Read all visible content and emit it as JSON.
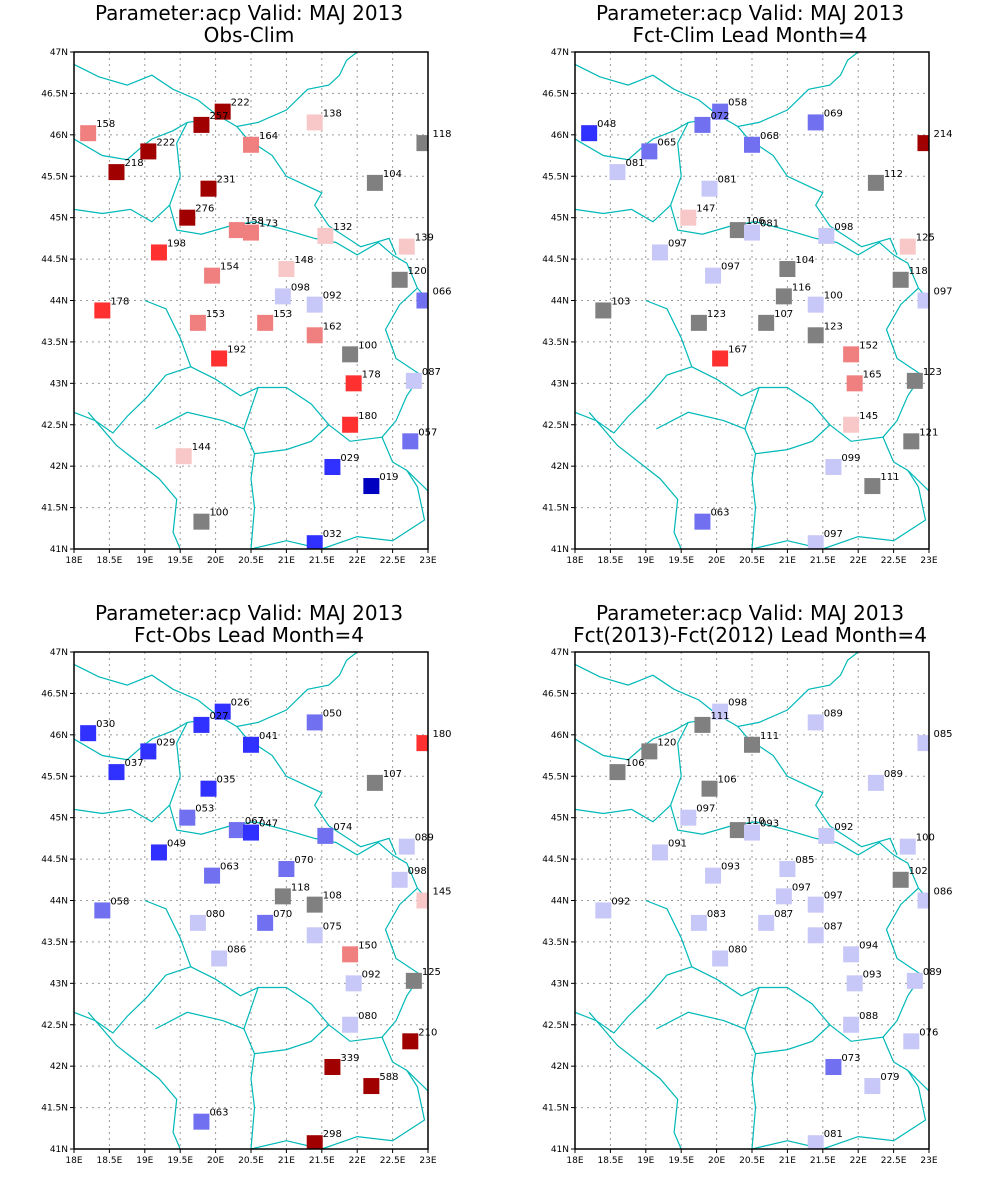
{
  "panels": [
    {
      "title": "Parameter:acp Valid: MAJ 2013",
      "subtitle": "Obs-Clim",
      "stations": [
        {
          "lon": 18.2,
          "lat": 46.02,
          "label": "158",
          "color": "#f08080"
        },
        {
          "lon": 20.1,
          "lat": 46.28,
          "label": "222",
          "color": "#a00000"
        },
        {
          "lon": 19.8,
          "lat": 46.12,
          "label": "257",
          "color": "#a00000"
        },
        {
          "lon": 19.05,
          "lat": 45.8,
          "label": "222",
          "color": "#a00000"
        },
        {
          "lon": 18.6,
          "lat": 45.55,
          "label": "218",
          "color": "#a00000"
        },
        {
          "lon": 20.5,
          "lat": 45.88,
          "label": "164",
          "color": "#f08080"
        },
        {
          "lon": 21.4,
          "lat": 46.15,
          "label": "138",
          "color": "#f8c8c8"
        },
        {
          "lon": 22.95,
          "lat": 45.9,
          "label": "118",
          "color": "#808080"
        },
        {
          "lon": 22.25,
          "lat": 45.42,
          "label": "104",
          "color": "#808080"
        },
        {
          "lon": 19.9,
          "lat": 45.35,
          "label": "231",
          "color": "#a00000"
        },
        {
          "lon": 19.6,
          "lat": 45.0,
          "label": "276",
          "color": "#a00000"
        },
        {
          "lon": 20.3,
          "lat": 44.85,
          "label": "158",
          "color": "#f08080"
        },
        {
          "lon": 20.5,
          "lat": 44.82,
          "label": "173",
          "color": "#f08080"
        },
        {
          "lon": 21.55,
          "lat": 44.78,
          "label": "132",
          "color": "#f8c8c8"
        },
        {
          "lon": 22.7,
          "lat": 44.65,
          "label": "139",
          "color": "#f8c8c8"
        },
        {
          "lon": 19.2,
          "lat": 44.58,
          "label": "198",
          "color": "#ff3030"
        },
        {
          "lon": 19.95,
          "lat": 44.3,
          "label": "154",
          "color": "#f08080"
        },
        {
          "lon": 21.0,
          "lat": 44.38,
          "label": "148",
          "color": "#f8c8c8"
        },
        {
          "lon": 22.6,
          "lat": 44.25,
          "label": "120",
          "color": "#808080"
        },
        {
          "lon": 22.95,
          "lat": 44.0,
          "label": "066",
          "color": "#7070f0"
        },
        {
          "lon": 18.4,
          "lat": 43.88,
          "label": "178",
          "color": "#ff3030"
        },
        {
          "lon": 20.95,
          "lat": 44.05,
          "label": "098",
          "color": "#c8c8f8"
        },
        {
          "lon": 21.4,
          "lat": 43.95,
          "label": "092",
          "color": "#c8c8f8"
        },
        {
          "lon": 19.75,
          "lat": 43.73,
          "label": "153",
          "color": "#f08080"
        },
        {
          "lon": 20.7,
          "lat": 43.73,
          "label": "153",
          "color": "#f08080"
        },
        {
          "lon": 21.4,
          "lat": 43.58,
          "label": "162",
          "color": "#f08080"
        },
        {
          "lon": 21.9,
          "lat": 43.35,
          "label": "100",
          "color": "#808080"
        },
        {
          "lon": 20.05,
          "lat": 43.3,
          "label": "192",
          "color": "#ff3030"
        },
        {
          "lon": 21.95,
          "lat": 43.0,
          "label": "178",
          "color": "#ff3030"
        },
        {
          "lon": 22.8,
          "lat": 43.03,
          "label": "087",
          "color": "#c8c8f8"
        },
        {
          "lon": 21.9,
          "lat": 42.5,
          "label": "180",
          "color": "#ff3030"
        },
        {
          "lon": 22.75,
          "lat": 42.3,
          "label": "057",
          "color": "#7070f0"
        },
        {
          "lon": 19.55,
          "lat": 42.12,
          "label": "144",
          "color": "#f8c8c8"
        },
        {
          "lon": 21.65,
          "lat": 41.99,
          "label": "029",
          "color": "#3030ff"
        },
        {
          "lon": 22.2,
          "lat": 41.76,
          "label": "019",
          "color": "#0000c0"
        },
        {
          "lon": 19.8,
          "lat": 41.33,
          "label": "100",
          "color": "#808080"
        },
        {
          "lon": 21.4,
          "lat": 41.07,
          "label": "032",
          "color": "#3030ff"
        }
      ]
    },
    {
      "title": "Parameter:acp Valid: MAJ 2013",
      "subtitle": "Fct-Clim Lead Month=4",
      "stations": [
        {
          "lon": 18.2,
          "lat": 46.02,
          "label": "048",
          "color": "#3030ff"
        },
        {
          "lon": 20.05,
          "lat": 46.28,
          "label": "058",
          "color": "#7070f0"
        },
        {
          "lon": 19.8,
          "lat": 46.12,
          "label": "072",
          "color": "#7070f0"
        },
        {
          "lon": 21.4,
          "lat": 46.15,
          "label": "069",
          "color": "#7070f0"
        },
        {
          "lon": 22.95,
          "lat": 45.9,
          "label": "214",
          "color": "#a00000"
        },
        {
          "lon": 19.05,
          "lat": 45.8,
          "label": "065",
          "color": "#7070f0"
        },
        {
          "lon": 20.5,
          "lat": 45.88,
          "label": "068",
          "color": "#7070f0"
        },
        {
          "lon": 18.6,
          "lat": 45.55,
          "label": "081",
          "color": "#c8c8f8"
        },
        {
          "lon": 19.9,
          "lat": 45.35,
          "label": "081",
          "color": "#c8c8f8"
        },
        {
          "lon": 22.25,
          "lat": 45.42,
          "label": "112",
          "color": "#808080"
        },
        {
          "lon": 19.6,
          "lat": 45.0,
          "label": "147",
          "color": "#f8c8c8"
        },
        {
          "lon": 20.3,
          "lat": 44.85,
          "label": "106",
          "color": "#808080"
        },
        {
          "lon": 20.5,
          "lat": 44.82,
          "label": "081",
          "color": "#c8c8f8"
        },
        {
          "lon": 21.55,
          "lat": 44.78,
          "label": "098",
          "color": "#c8c8f8"
        },
        {
          "lon": 22.7,
          "lat": 44.65,
          "label": "125",
          "color": "#f8c8c8"
        },
        {
          "lon": 19.2,
          "lat": 44.58,
          "label": "097",
          "color": "#c8c8f8"
        },
        {
          "lon": 21.0,
          "lat": 44.38,
          "label": "104",
          "color": "#808080"
        },
        {
          "lon": 19.95,
          "lat": 44.3,
          "label": "097",
          "color": "#c8c8f8"
        },
        {
          "lon": 22.6,
          "lat": 44.25,
          "label": "118",
          "color": "#808080"
        },
        {
          "lon": 22.95,
          "lat": 44.0,
          "label": "097",
          "color": "#c8c8f8"
        },
        {
          "lon": 20.95,
          "lat": 44.05,
          "label": "116",
          "color": "#808080"
        },
        {
          "lon": 21.4,
          "lat": 43.95,
          "label": "100",
          "color": "#c8c8f8"
        },
        {
          "lon": 18.4,
          "lat": 43.88,
          "label": "103",
          "color": "#808080"
        },
        {
          "lon": 19.75,
          "lat": 43.73,
          "label": "123",
          "color": "#808080"
        },
        {
          "lon": 20.7,
          "lat": 43.73,
          "label": "107",
          "color": "#808080"
        },
        {
          "lon": 21.4,
          "lat": 43.58,
          "label": "123",
          "color": "#808080"
        },
        {
          "lon": 21.9,
          "lat": 43.35,
          "label": "152",
          "color": "#f08080"
        },
        {
          "lon": 20.05,
          "lat": 43.3,
          "label": "167",
          "color": "#ff3030"
        },
        {
          "lon": 21.95,
          "lat": 43.0,
          "label": "165",
          "color": "#f08080"
        },
        {
          "lon": 22.8,
          "lat": 43.03,
          "label": "123",
          "color": "#808080"
        },
        {
          "lon": 21.9,
          "lat": 42.5,
          "label": "145",
          "color": "#f8c8c8"
        },
        {
          "lon": 22.75,
          "lat": 42.3,
          "label": "121",
          "color": "#808080"
        },
        {
          "lon": 21.65,
          "lat": 41.99,
          "label": "099",
          "color": "#c8c8f8"
        },
        {
          "lon": 22.2,
          "lat": 41.76,
          "label": "111",
          "color": "#808080"
        },
        {
          "lon": 19.8,
          "lat": 41.33,
          "label": "063",
          "color": "#7070f0"
        },
        {
          "lon": 21.4,
          "lat": 41.07,
          "label": "097",
          "color": "#c8c8f8"
        }
      ]
    },
    {
      "title": "Parameter:acp Valid: MAJ 2013",
      "subtitle": "Fct-Obs Lead Month=4",
      "stations": [
        {
          "lon": 18.2,
          "lat": 46.02,
          "label": "030",
          "color": "#3030ff"
        },
        {
          "lon": 20.1,
          "lat": 46.28,
          "label": "026",
          "color": "#3030ff"
        },
        {
          "lon": 19.8,
          "lat": 46.12,
          "label": "027",
          "color": "#3030ff"
        },
        {
          "lon": 21.4,
          "lat": 46.15,
          "label": "050",
          "color": "#7070f0"
        },
        {
          "lon": 22.95,
          "lat": 45.9,
          "label": "180",
          "color": "#ff3030"
        },
        {
          "lon": 19.05,
          "lat": 45.8,
          "label": "029",
          "color": "#3030ff"
        },
        {
          "lon": 20.5,
          "lat": 45.88,
          "label": "041",
          "color": "#3030ff"
        },
        {
          "lon": 18.6,
          "lat": 45.55,
          "label": "037",
          "color": "#3030ff"
        },
        {
          "lon": 22.25,
          "lat": 45.42,
          "label": "107",
          "color": "#808080"
        },
        {
          "lon": 19.9,
          "lat": 45.35,
          "label": "035",
          "color": "#3030ff"
        },
        {
          "lon": 19.6,
          "lat": 45.0,
          "label": "053",
          "color": "#7070f0"
        },
        {
          "lon": 20.3,
          "lat": 44.85,
          "label": "067",
          "color": "#7070f0"
        },
        {
          "lon": 20.5,
          "lat": 44.82,
          "label": "047",
          "color": "#3030ff"
        },
        {
          "lon": 21.55,
          "lat": 44.78,
          "label": "074",
          "color": "#7070f0"
        },
        {
          "lon": 22.7,
          "lat": 44.65,
          "label": "089",
          "color": "#c8c8f8"
        },
        {
          "lon": 19.2,
          "lat": 44.58,
          "label": "049",
          "color": "#3030ff"
        },
        {
          "lon": 21.0,
          "lat": 44.38,
          "label": "070",
          "color": "#7070f0"
        },
        {
          "lon": 19.95,
          "lat": 44.3,
          "label": "063",
          "color": "#7070f0"
        },
        {
          "lon": 22.6,
          "lat": 44.25,
          "label": "098",
          "color": "#c8c8f8"
        },
        {
          "lon": 22.95,
          "lat": 44.0,
          "label": "145",
          "color": "#f8c8c8"
        },
        {
          "lon": 20.95,
          "lat": 44.05,
          "label": "118",
          "color": "#808080"
        },
        {
          "lon": 21.4,
          "lat": 43.95,
          "label": "108",
          "color": "#808080"
        },
        {
          "lon": 18.4,
          "lat": 43.88,
          "label": "058",
          "color": "#7070f0"
        },
        {
          "lon": 19.75,
          "lat": 43.73,
          "label": "080",
          "color": "#c8c8f8"
        },
        {
          "lon": 20.7,
          "lat": 43.73,
          "label": "070",
          "color": "#7070f0"
        },
        {
          "lon": 21.4,
          "lat": 43.58,
          "label": "075",
          "color": "#c8c8f8"
        },
        {
          "lon": 21.9,
          "lat": 43.35,
          "label": "150",
          "color": "#f08080"
        },
        {
          "lon": 20.05,
          "lat": 43.3,
          "label": "086",
          "color": "#c8c8f8"
        },
        {
          "lon": 21.95,
          "lat": 43.0,
          "label": "092",
          "color": "#c8c8f8"
        },
        {
          "lon": 22.8,
          "lat": 43.03,
          "label": "125",
          "color": "#808080"
        },
        {
          "lon": 21.9,
          "lat": 42.5,
          "label": "080",
          "color": "#c8c8f8"
        },
        {
          "lon": 22.75,
          "lat": 42.3,
          "label": "210",
          "color": "#a00000"
        },
        {
          "lon": 21.65,
          "lat": 41.99,
          "label": "339",
          "color": "#a00000"
        },
        {
          "lon": 22.2,
          "lat": 41.76,
          "label": "588",
          "color": "#a00000"
        },
        {
          "lon": 19.8,
          "lat": 41.33,
          "label": "063",
          "color": "#7070f0"
        },
        {
          "lon": 21.4,
          "lat": 41.07,
          "label": "298",
          "color": "#a00000"
        }
      ]
    },
    {
      "title": "Parameter:acp Valid: MAJ 2013",
      "subtitle": "Fct(2013)-Fct(2012) Lead Month=4",
      "stations": [
        {
          "lon": 20.05,
          "lat": 46.28,
          "label": "098",
          "color": "#c8c8f8"
        },
        {
          "lon": 19.8,
          "lat": 46.12,
          "label": "111",
          "color": "#808080"
        },
        {
          "lon": 21.4,
          "lat": 46.15,
          "label": "089",
          "color": "#c8c8f8"
        },
        {
          "lon": 22.95,
          "lat": 45.9,
          "label": "085",
          "color": "#c8c8f8"
        },
        {
          "lon": 19.05,
          "lat": 45.8,
          "label": "120",
          "color": "#808080"
        },
        {
          "lon": 20.5,
          "lat": 45.88,
          "label": "111",
          "color": "#808080"
        },
        {
          "lon": 18.6,
          "lat": 45.55,
          "label": "106",
          "color": "#808080"
        },
        {
          "lon": 22.25,
          "lat": 45.42,
          "label": "089",
          "color": "#c8c8f8"
        },
        {
          "lon": 19.9,
          "lat": 45.35,
          "label": "106",
          "color": "#808080"
        },
        {
          "lon": 19.6,
          "lat": 45.0,
          "label": "097",
          "color": "#c8c8f8"
        },
        {
          "lon": 20.3,
          "lat": 44.85,
          "label": "110",
          "color": "#808080"
        },
        {
          "lon": 20.5,
          "lat": 44.82,
          "label": "093",
          "color": "#c8c8f8"
        },
        {
          "lon": 21.55,
          "lat": 44.78,
          "label": "092",
          "color": "#c8c8f8"
        },
        {
          "lon": 22.7,
          "lat": 44.65,
          "label": "100",
          "color": "#c8c8f8"
        },
        {
          "lon": 19.2,
          "lat": 44.58,
          "label": "091",
          "color": "#c8c8f8"
        },
        {
          "lon": 21.0,
          "lat": 44.38,
          "label": "085",
          "color": "#c8c8f8"
        },
        {
          "lon": 19.95,
          "lat": 44.3,
          "label": "093",
          "color": "#c8c8f8"
        },
        {
          "lon": 22.6,
          "lat": 44.25,
          "label": "102",
          "color": "#808080"
        },
        {
          "lon": 22.95,
          "lat": 44.0,
          "label": "086",
          "color": "#c8c8f8"
        },
        {
          "lon": 20.95,
          "lat": 44.05,
          "label": "097",
          "color": "#c8c8f8"
        },
        {
          "lon": 21.4,
          "lat": 43.95,
          "label": "097",
          "color": "#c8c8f8"
        },
        {
          "lon": 18.4,
          "lat": 43.88,
          "label": "092",
          "color": "#c8c8f8"
        },
        {
          "lon": 19.75,
          "lat": 43.73,
          "label": "083",
          "color": "#c8c8f8"
        },
        {
          "lon": 20.7,
          "lat": 43.73,
          "label": "087",
          "color": "#c8c8f8"
        },
        {
          "lon": 21.4,
          "lat": 43.58,
          "label": "087",
          "color": "#c8c8f8"
        },
        {
          "lon": 21.9,
          "lat": 43.35,
          "label": "094",
          "color": "#c8c8f8"
        },
        {
          "lon": 20.05,
          "lat": 43.3,
          "label": "080",
          "color": "#c8c8f8"
        },
        {
          "lon": 21.95,
          "lat": 43.0,
          "label": "093",
          "color": "#c8c8f8"
        },
        {
          "lon": 22.8,
          "lat": 43.03,
          "label": "089",
          "color": "#c8c8f8"
        },
        {
          "lon": 21.9,
          "lat": 42.5,
          "label": "088",
          "color": "#c8c8f8"
        },
        {
          "lon": 22.75,
          "lat": 42.3,
          "label": "076",
          "color": "#c8c8f8"
        },
        {
          "lon": 21.65,
          "lat": 41.99,
          "label": "073",
          "color": "#7070f0"
        },
        {
          "lon": 22.2,
          "lat": 41.76,
          "label": "079",
          "color": "#c8c8f8"
        },
        {
          "lon": 21.4,
          "lat": 41.07,
          "label": "081",
          "color": "#c8c8f8"
        }
      ]
    }
  ],
  "axes": {
    "lon_ticks": [
      "18E",
      "18.5E",
      "19E",
      "19.5E",
      "20E",
      "20.5E",
      "21E",
      "21.5E",
      "22E",
      "22.5E",
      "23E"
    ],
    "lat_ticks": [
      "41N",
      "41.5N",
      "42N",
      "42.5N",
      "43N",
      "43.5N",
      "44N",
      "44.5N",
      "45N",
      "45.5N",
      "46N",
      "46.5N",
      "47N"
    ],
    "lon_range": [
      18,
      23
    ],
    "lat_range": [
      41,
      47
    ]
  },
  "colors": {
    "border_line": "#00b8b8",
    "grid": "#9a9a9a",
    "frame": "#000000"
  }
}
